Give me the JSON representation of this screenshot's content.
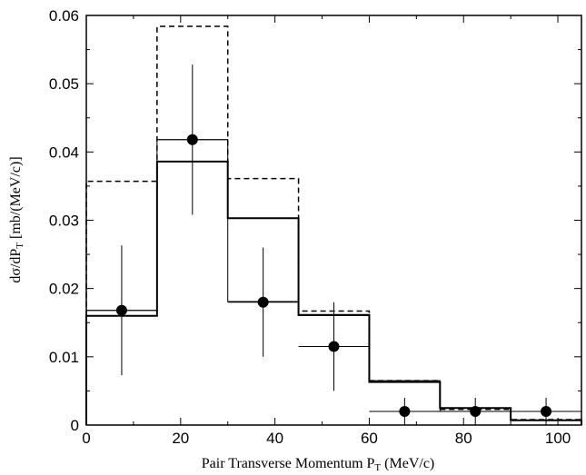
{
  "chart_data": {
    "type": "histogram-with-points",
    "xlabel_main": "Pair Transverse Momentum P",
    "xlabel_sub": "T",
    "xlabel_unit": " (MeV/c)",
    "ylabel_main": "dσ/dP",
    "ylabel_sub": "T",
    "ylabel_unit": " [mb/(MeV/c)]",
    "xlim": [
      0,
      105
    ],
    "ylim": [
      0,
      0.06
    ],
    "x_ticks": [
      0,
      20,
      40,
      60,
      80,
      100
    ],
    "x_tick_labels": [
      "0",
      "20",
      "40",
      "60",
      "80",
      "100"
    ],
    "y_ticks": [
      0,
      0.01,
      0.02,
      0.03,
      0.04,
      0.05,
      0.06
    ],
    "y_tick_labels": [
      "0",
      "0.01",
      "0.02",
      "0.03",
      "0.04",
      "0.05",
      "0.06"
    ],
    "bin_edges": [
      0,
      15,
      30,
      45,
      60,
      75,
      90,
      105
    ],
    "series": [
      {
        "style": "solid",
        "values": [
          0.016,
          0.0386,
          0.0303,
          0.0161,
          0.0063,
          0.0025,
          0.0007
        ]
      },
      {
        "style": "dashed",
        "values": [
          0.0357,
          0.0584,
          0.0361,
          0.0167,
          0.0065,
          0.0023,
          0.0008
        ]
      },
      {
        "style": "thin",
        "values": [
          0.0168,
          0.0418,
          0.0181,
          0.0162,
          0.0065,
          0.002,
          0.002
        ]
      }
    ],
    "points": [
      {
        "x": 7.5,
        "y": 0.0168,
        "xerr": 7.5,
        "yerr_low": 0.0095,
        "yerr_high": 0.0095
      },
      {
        "x": 22.5,
        "y": 0.0418,
        "xerr": 7.5,
        "yerr_low": 0.011,
        "yerr_high": 0.011
      },
      {
        "x": 37.5,
        "y": 0.018,
        "xerr": 7.5,
        "yerr_low": 0.008,
        "yerr_high": 0.008
      },
      {
        "x": 52.5,
        "y": 0.0115,
        "xerr": 7.5,
        "yerr_low": 0.0065,
        "yerr_high": 0.0065
      },
      {
        "x": 67.5,
        "y": 0.002,
        "xerr": 7.5,
        "yerr_low": 0.002,
        "yerr_high": 0.002
      },
      {
        "x": 82.5,
        "y": 0.002,
        "xerr": 7.5,
        "yerr_low": 0.002,
        "yerr_high": 0.002
      },
      {
        "x": 97.5,
        "y": 0.002,
        "xerr": 7.5,
        "yerr_low": 0.002,
        "yerr_high": 0.002
      }
    ]
  }
}
